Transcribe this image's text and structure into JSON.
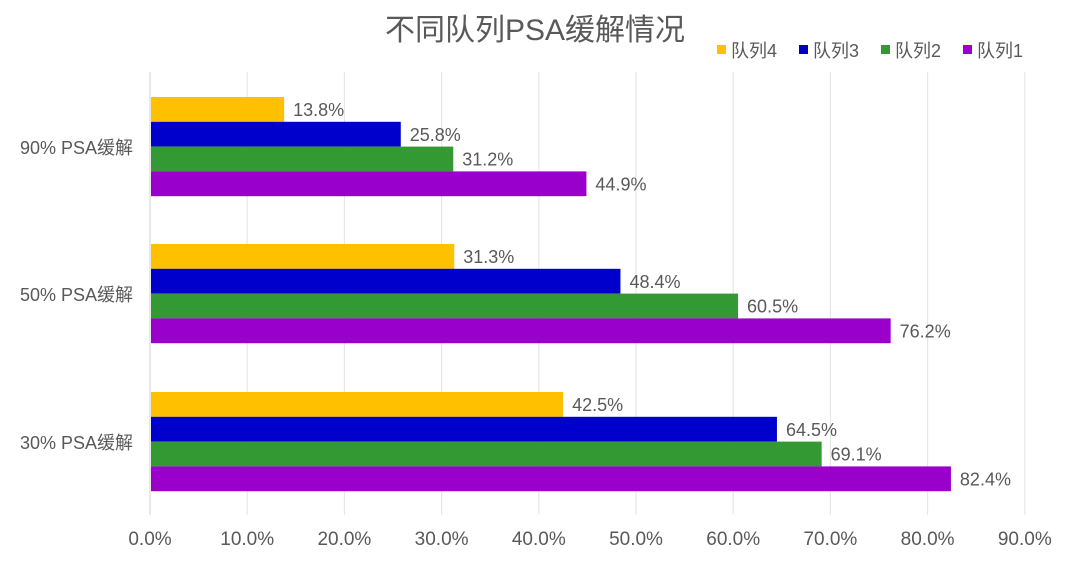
{
  "chart_data": {
    "type": "bar",
    "orientation": "horizontal",
    "title": "不同队列PSA缓解情况",
    "categories": [
      "90% PSA缓解",
      "50% PSA缓解",
      "30% PSA缓解"
    ],
    "series": [
      {
        "name": "队列4",
        "color": "#FFC000",
        "values": [
          13.8,
          31.3,
          42.5
        ],
        "labels": [
          "13.8%",
          "31.3%",
          "42.5%"
        ]
      },
      {
        "name": "队列3",
        "color": "#0000CC",
        "values": [
          25.8,
          48.4,
          64.5
        ],
        "labels": [
          "25.8%",
          "48.4%",
          "64.5%"
        ]
      },
      {
        "name": "队列2",
        "color": "#339933",
        "values": [
          31.2,
          60.5,
          69.1
        ],
        "labels": [
          "31.2%",
          "60.5%",
          "69.1%"
        ]
      },
      {
        "name": "队列1",
        "color": "#9900CC",
        "values": [
          44.9,
          76.2,
          82.4
        ],
        "labels": [
          "44.9%",
          "76.2%",
          "82.4%"
        ]
      }
    ],
    "xlim": [
      0,
      90
    ],
    "xticks": [
      "0.0%",
      "10.0%",
      "20.0%",
      "30.0%",
      "40.0%",
      "50.0%",
      "60.0%",
      "70.0%",
      "80.0%",
      "90.0%"
    ],
    "grid": true,
    "legend": "top-right"
  }
}
